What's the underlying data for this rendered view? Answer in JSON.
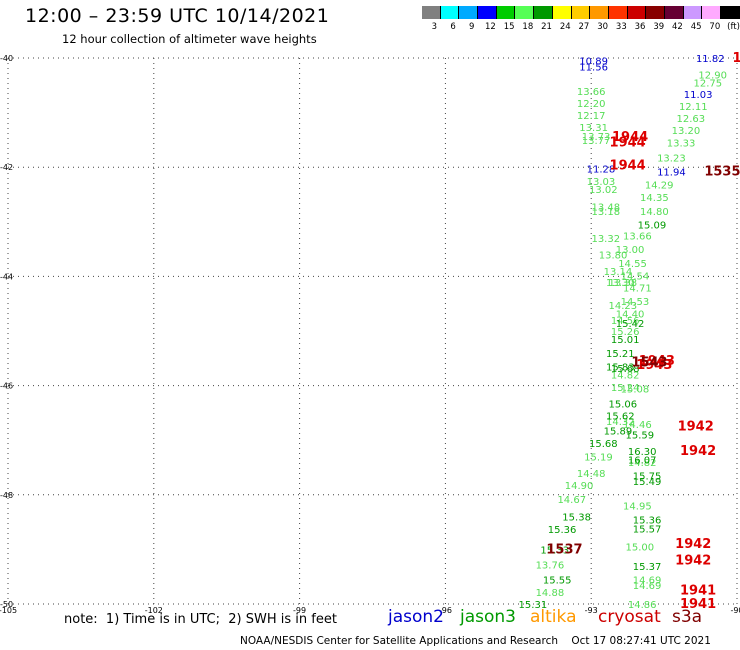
{
  "title": "12:00 – 23:59 UTC 10/14/2021",
  "subtitle": "12 hour collection of altimeter wave heights",
  "scale": {
    "colors": [
      "#808080",
      "#00ffff",
      "#00aaff",
      "#0000ff",
      "#00cc00",
      "#55ff55",
      "#009900",
      "#ffff00",
      "#ffcc00",
      "#ff9900",
      "#ff3300",
      "#cc0000",
      "#880000",
      "#660033",
      "#cc99ff",
      "#ffaaff",
      "#000000"
    ],
    "labels": [
      "3",
      "6",
      "9",
      "12",
      "15",
      "18",
      "21",
      "24",
      "27",
      "30",
      "33",
      "36",
      "39",
      "42",
      "45",
      "70",
      "(ft)"
    ]
  },
  "note": "note:  1) Time is in UTC;  2) SWH is in feet",
  "legend": [
    {
      "name": "jason2",
      "color": "#0000cc"
    },
    {
      "name": "jason3",
      "color": "#009900"
    },
    {
      "name": "altika",
      "color": "#ff9900"
    },
    {
      "name": "cryosat",
      "color": "#cc0000"
    },
    {
      "name": "s3a",
      "color": "#800000"
    }
  ],
  "credit": "NOAA/NESDIS Center for Satellite Applications and Research    Oct 17 08:27:41 UTC 2021",
  "chart_data": {
    "type": "scatter",
    "title": "12:00 – 23:59 UTC 10/14/2021",
    "xlim": [
      -105,
      -90
    ],
    "ylim": [
      -50,
      -40
    ],
    "x_ticks": [
      {
        "value": -105,
        "label": "-105"
      },
      {
        "value": -102,
        "label": "-102"
      },
      {
        "value": -99,
        "label": "-99"
      },
      {
        "value": -96,
        "label": "-96"
      },
      {
        "value": -93,
        "label": "-93"
      },
      {
        "value": -90,
        "label": "-90"
      }
    ],
    "y_ticks": [
      {
        "value": -40,
        "label": "-40"
      },
      {
        "value": -42,
        "label": "-42"
      },
      {
        "value": -44,
        "label": "-44"
      },
      {
        "value": -46,
        "label": "-46"
      },
      {
        "value": -48,
        "label": "-48"
      },
      {
        "value": -50,
        "label": "-50"
      }
    ],
    "grid": true,
    "series": [
      {
        "name": "jason2",
        "color": "#0000cc",
        "points": [
          {
            "x": -92.95,
            "y": -40.05,
            "label": "10.89"
          },
          {
            "x": -92.95,
            "y": -40.16,
            "label": "11.56"
          },
          {
            "x": -92.8,
            "y": -42.02,
            "label": "11.28"
          },
          {
            "x": -90.55,
            "y": -40.0,
            "label": "11.82"
          },
          {
            "x": -90.8,
            "y": -40.66,
            "label": "11.03"
          },
          {
            "x": -91.35,
            "y": -42.08,
            "label": "11.94"
          }
        ]
      },
      {
        "name": "jason3 (light)",
        "color": "#55dd55",
        "points": [
          {
            "x": -93.0,
            "y": -40.6,
            "label": "13.66"
          },
          {
            "x": -93.0,
            "y": -40.82,
            "label": "12.20"
          },
          {
            "x": -93.0,
            "y": -41.04,
            "label": "12.17"
          },
          {
            "x": -92.95,
            "y": -41.26,
            "label": "13.31"
          },
          {
            "x": -92.9,
            "y": -41.5,
            "label": "13.77"
          },
          {
            "x": -92.9,
            "y": -41.43,
            "label": "13.73"
          },
          {
            "x": -92.8,
            "y": -42.25,
            "label": "13.03"
          },
          {
            "x": -92.75,
            "y": -42.4,
            "label": "13.02"
          },
          {
            "x": -92.7,
            "y": -42.72,
            "label": "13.48"
          },
          {
            "x": -92.7,
            "y": -42.8,
            "label": "13.18"
          },
          {
            "x": -92.7,
            "y": -43.3,
            "label": "13.32"
          },
          {
            "x": -92.55,
            "y": -43.6,
            "label": "13.80"
          },
          {
            "x": -92.45,
            "y": -43.9,
            "label": "13.14"
          },
          {
            "x": -92.4,
            "y": -44.1,
            "label": "13.30"
          },
          {
            "x": -92.35,
            "y": -44.1,
            "label": "13.38"
          },
          {
            "x": -92.35,
            "y": -44.52,
            "label": "14.23"
          },
          {
            "x": -92.3,
            "y": -44.8,
            "label": "14.56"
          },
          {
            "x": -92.3,
            "y": -45.0,
            "label": "15.26"
          },
          {
            "x": -92.3,
            "y": -45.8,
            "label": "14.82"
          },
          {
            "x": -92.3,
            "y": -46.03,
            "label": "15.24"
          },
          {
            "x": -92.4,
            "y": -46.65,
            "label": "14.32"
          },
          {
            "x": -92.85,
            "y": -47.3,
            "label": "15.19"
          },
          {
            "x": -93.0,
            "y": -47.6,
            "label": "14.48"
          },
          {
            "x": -93.25,
            "y": -47.82,
            "label": "14.90"
          },
          {
            "x": -93.4,
            "y": -48.08,
            "label": "14.67"
          },
          {
            "x": -93.85,
            "y": -49.28,
            "label": "13.76"
          },
          {
            "x": -93.85,
            "y": -49.78,
            "label": "14.88"
          },
          {
            "x": -90.5,
            "y": -40.3,
            "label": "12.90"
          },
          {
            "x": -90.6,
            "y": -40.45,
            "label": "12.75"
          },
          {
            "x": -90.9,
            "y": -40.88,
            "label": "12.11"
          },
          {
            "x": -90.95,
            "y": -41.1,
            "label": "12.63"
          },
          {
            "x": -91.05,
            "y": -41.32,
            "label": "13.20"
          },
          {
            "x": -91.15,
            "y": -41.55,
            "label": "13.33"
          },
          {
            "x": -91.35,
            "y": -41.82,
            "label": "13.23"
          },
          {
            "x": -91.6,
            "y": -42.32,
            "label": "14.29"
          },
          {
            "x": -91.7,
            "y": -42.55,
            "label": "14.35"
          },
          {
            "x": -91.7,
            "y": -42.8,
            "label": "14.80"
          },
          {
            "x": -92.05,
            "y": -43.25,
            "label": "13.66"
          },
          {
            "x": -92.2,
            "y": -43.5,
            "label": "13.00"
          },
          {
            "x": -92.15,
            "y": -43.75,
            "label": "14.55"
          },
          {
            "x": -92.1,
            "y": -43.98,
            "label": "14.54"
          },
          {
            "x": -92.05,
            "y": -44.2,
            "label": "14.71"
          },
          {
            "x": -92.1,
            "y": -44.45,
            "label": "14.53"
          },
          {
            "x": -92.2,
            "y": -44.68,
            "label": "14.40"
          },
          {
            "x": -92.1,
            "y": -46.05,
            "label": "15.08"
          },
          {
            "x": -92.05,
            "y": -46.7,
            "label": "14.46"
          },
          {
            "x": -91.95,
            "y": -47.4,
            "label": "14.82"
          },
          {
            "x": -92.05,
            "y": -48.2,
            "label": "14.95"
          },
          {
            "x": -92.0,
            "y": -48.95,
            "label": "15.00"
          },
          {
            "x": -91.85,
            "y": -49.55,
            "label": "14.69"
          },
          {
            "x": -91.85,
            "y": -49.65,
            "label": "14.69"
          },
          {
            "x": -91.95,
            "y": -50.0,
            "label": "14.86"
          }
        ]
      },
      {
        "name": "jason3 (dark)",
        "color": "#009900",
        "points": [
          {
            "x": -91.75,
            "y": -43.05,
            "label": "15.09"
          },
          {
            "x": -92.2,
            "y": -44.85,
            "label": "15.42"
          },
          {
            "x": -92.3,
            "y": -45.15,
            "label": "15.01"
          },
          {
            "x": -92.4,
            "y": -45.4,
            "label": "15.21"
          },
          {
            "x": -92.4,
            "y": -45.65,
            "label": "15.83"
          },
          {
            "x": -92.3,
            "y": -45.68,
            "label": "15.68"
          },
          {
            "x": -92.35,
            "y": -46.33,
            "label": "15.06"
          },
          {
            "x": -92.4,
            "y": -46.55,
            "label": "15.62"
          },
          {
            "x": -92.45,
            "y": -46.82,
            "label": "15.89"
          },
          {
            "x": -92.75,
            "y": -47.05,
            "label": "15.68"
          },
          {
            "x": -93.3,
            "y": -48.4,
            "label": "15.38"
          },
          {
            "x": -93.6,
            "y": -48.63,
            "label": "15.36"
          },
          {
            "x": -93.75,
            "y": -49.0,
            "label": "15.33"
          },
          {
            "x": -93.7,
            "y": -49.55,
            "label": "15.55"
          },
          {
            "x": -94.2,
            "y": -50.0,
            "label": "15.31"
          },
          {
            "x": -92.0,
            "y": -46.9,
            "label": "15.59"
          },
          {
            "x": -91.95,
            "y": -47.2,
            "label": "16.30"
          },
          {
            "x": -91.95,
            "y": -47.35,
            "label": "16.07"
          },
          {
            "x": -91.85,
            "y": -47.65,
            "label": "15.75"
          },
          {
            "x": -91.85,
            "y": -47.75,
            "label": "15.49"
          },
          {
            "x": -91.85,
            "y": -48.45,
            "label": "15.36"
          },
          {
            "x": -91.85,
            "y": -48.62,
            "label": "15.57"
          },
          {
            "x": -91.85,
            "y": -49.3,
            "label": "15.37"
          }
        ]
      },
      {
        "name": "cryosat",
        "color": "#dd0000",
        "points": [
          {
            "x": -92.2,
            "y": -41.45,
            "label": "1944"
          },
          {
            "x": -92.25,
            "y": -41.55,
            "label": "1944"
          },
          {
            "x": -92.25,
            "y": -41.97,
            "label": "1944"
          },
          {
            "x": -91.65,
            "y": -45.55,
            "label": "1943"
          },
          {
            "x": -91.7,
            "y": -45.62,
            "label": "1943"
          },
          {
            "x": -90.85,
            "y": -46.75,
            "label": "1942"
          },
          {
            "x": -90.8,
            "y": -47.2,
            "label": "1942"
          },
          {
            "x": -90.9,
            "y": -48.9,
            "label": "1942"
          },
          {
            "x": -90.9,
            "y": -49.2,
            "label": "1942"
          },
          {
            "x": -90.8,
            "y": -49.75,
            "label": "1941"
          },
          {
            "x": -90.8,
            "y": -50.0,
            "label": "1941"
          },
          {
            "x": -90.0,
            "y": -40.0,
            "label": "1"
          }
        ]
      },
      {
        "name": "s3a",
        "color": "#800000",
        "points": [
          {
            "x": -90.3,
            "y": -42.08,
            "label": "1535"
          },
          {
            "x": -93.55,
            "y": -49.0,
            "label": "1537"
          },
          {
            "x": -91.8,
            "y": -45.58,
            "label": "1543"
          }
        ]
      }
    ]
  }
}
